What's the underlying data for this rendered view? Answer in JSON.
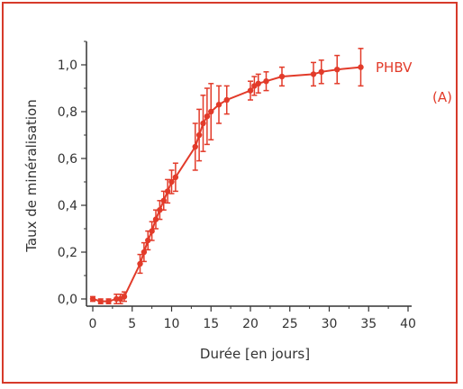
{
  "colors": {
    "frame": "#d63a2a",
    "series": "#e23b2a",
    "axis": "#333333"
  },
  "chart_data": {
    "type": "line",
    "xlabel": "Durée [en jours]",
    "ylabel": "Taux de minéralisation",
    "xlim": [
      0,
      40
    ],
    "ylim": [
      0,
      1.1
    ],
    "xticks": [
      0,
      5,
      10,
      15,
      20,
      25,
      30,
      35,
      40
    ],
    "xtick_labels": [
      "0",
      "5",
      "10",
      "15",
      "20",
      "25",
      "30",
      "35",
      "40"
    ],
    "yticks": [
      0,
      0.2,
      0.4,
      0.6,
      0.8,
      1.0
    ],
    "ytick_labels": [
      "0,0",
      "0,2",
      "0,4",
      "0,6",
      "0,8",
      "1,0"
    ],
    "grid": false,
    "series": [
      {
        "name": "PHBV",
        "x": [
          0.0,
          1.0,
          2.0,
          3.0,
          3.5,
          4.0,
          6.0,
          6.5,
          7.0,
          7.5,
          8.0,
          8.5,
          9.0,
          9.5,
          10.0,
          10.5,
          13.0,
          13.5,
          14.0,
          14.5,
          15.0,
          16.0,
          17.0,
          20.0,
          20.5,
          21.0,
          22.0,
          24.0,
          28.0,
          29.0,
          31.0,
          34.0
        ],
        "y": [
          0.0,
          -0.01,
          -0.01,
          0.0,
          0.0,
          0.01,
          0.15,
          0.2,
          0.25,
          0.29,
          0.34,
          0.38,
          0.42,
          0.46,
          0.5,
          0.52,
          0.65,
          0.7,
          0.75,
          0.78,
          0.8,
          0.83,
          0.85,
          0.89,
          0.91,
          0.92,
          0.93,
          0.95,
          0.96,
          0.97,
          0.98,
          0.99
        ],
        "err": [
          0.01,
          0.01,
          0.01,
          0.02,
          0.02,
          0.02,
          0.04,
          0.04,
          0.04,
          0.04,
          0.04,
          0.04,
          0.04,
          0.05,
          0.05,
          0.06,
          0.1,
          0.11,
          0.12,
          0.12,
          0.12,
          0.08,
          0.06,
          0.04,
          0.04,
          0.04,
          0.04,
          0.04,
          0.05,
          0.05,
          0.06,
          0.08
        ]
      }
    ],
    "annotations": [
      "PHBV",
      "(A)"
    ]
  }
}
